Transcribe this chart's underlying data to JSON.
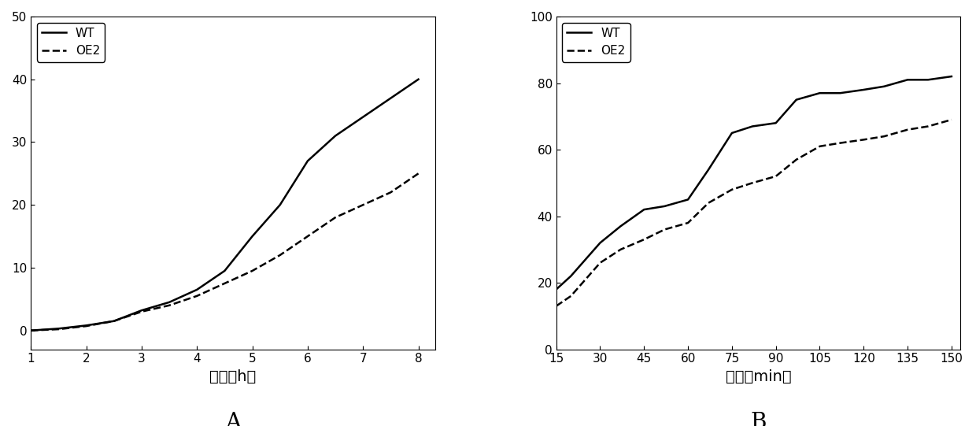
{
  "panel_A": {
    "x": [
      1,
      1.5,
      2,
      2.5,
      3,
      3.5,
      4,
      4.5,
      5,
      5.5,
      6,
      6.5,
      7,
      7.5,
      8
    ],
    "WT": [
      0,
      0.3,
      0.8,
      1.5,
      3.2,
      4.5,
      6.5,
      9.5,
      15,
      20,
      27,
      31,
      34,
      37,
      40
    ],
    "OE2": [
      0,
      0.2,
      0.7,
      1.5,
      3.0,
      4.0,
      5.5,
      7.5,
      9.5,
      12,
      15,
      18,
      20,
      22,
      25
    ],
    "xlabel": "时间（h）",
    "ylabel": "",
    "xlim": [
      1,
      8.3
    ],
    "ylim": [
      -3,
      50
    ],
    "xticks": [
      1,
      2,
      3,
      4,
      5,
      6,
      7,
      8
    ],
    "yticks": [
      0,
      10,
      20,
      30,
      40,
      50
    ],
    "label": "A"
  },
  "panel_B": {
    "x": [
      15,
      20,
      30,
      37,
      45,
      52,
      60,
      67,
      75,
      82,
      90,
      97,
      105,
      112,
      120,
      127,
      135,
      142,
      150
    ],
    "WT": [
      18,
      22,
      32,
      37,
      42,
      43,
      45,
      54,
      65,
      67,
      68,
      75,
      77,
      77,
      78,
      79,
      81,
      81,
      82
    ],
    "OE2": [
      13,
      16,
      26,
      30,
      33,
      36,
      38,
      44,
      48,
      50,
      52,
      57,
      61,
      62,
      63,
      64,
      66,
      67,
      69
    ],
    "xlabel": "时间（min）",
    "ylabel": "",
    "xlim": [
      15,
      153
    ],
    "ylim": [
      0,
      100
    ],
    "xticks": [
      15,
      30,
      45,
      60,
      75,
      90,
      105,
      120,
      135,
      150
    ],
    "yticks": [
      0,
      20,
      40,
      60,
      80,
      100
    ],
    "label": "B"
  },
  "legend_WT": "WT",
  "legend_OE2": "OE2",
  "line_color": "#000000",
  "bg_color": "#ffffff",
  "xlabel_fontsize": 14,
  "tick_fontsize": 11,
  "legend_fontsize": 11,
  "label_fontsize": 20
}
